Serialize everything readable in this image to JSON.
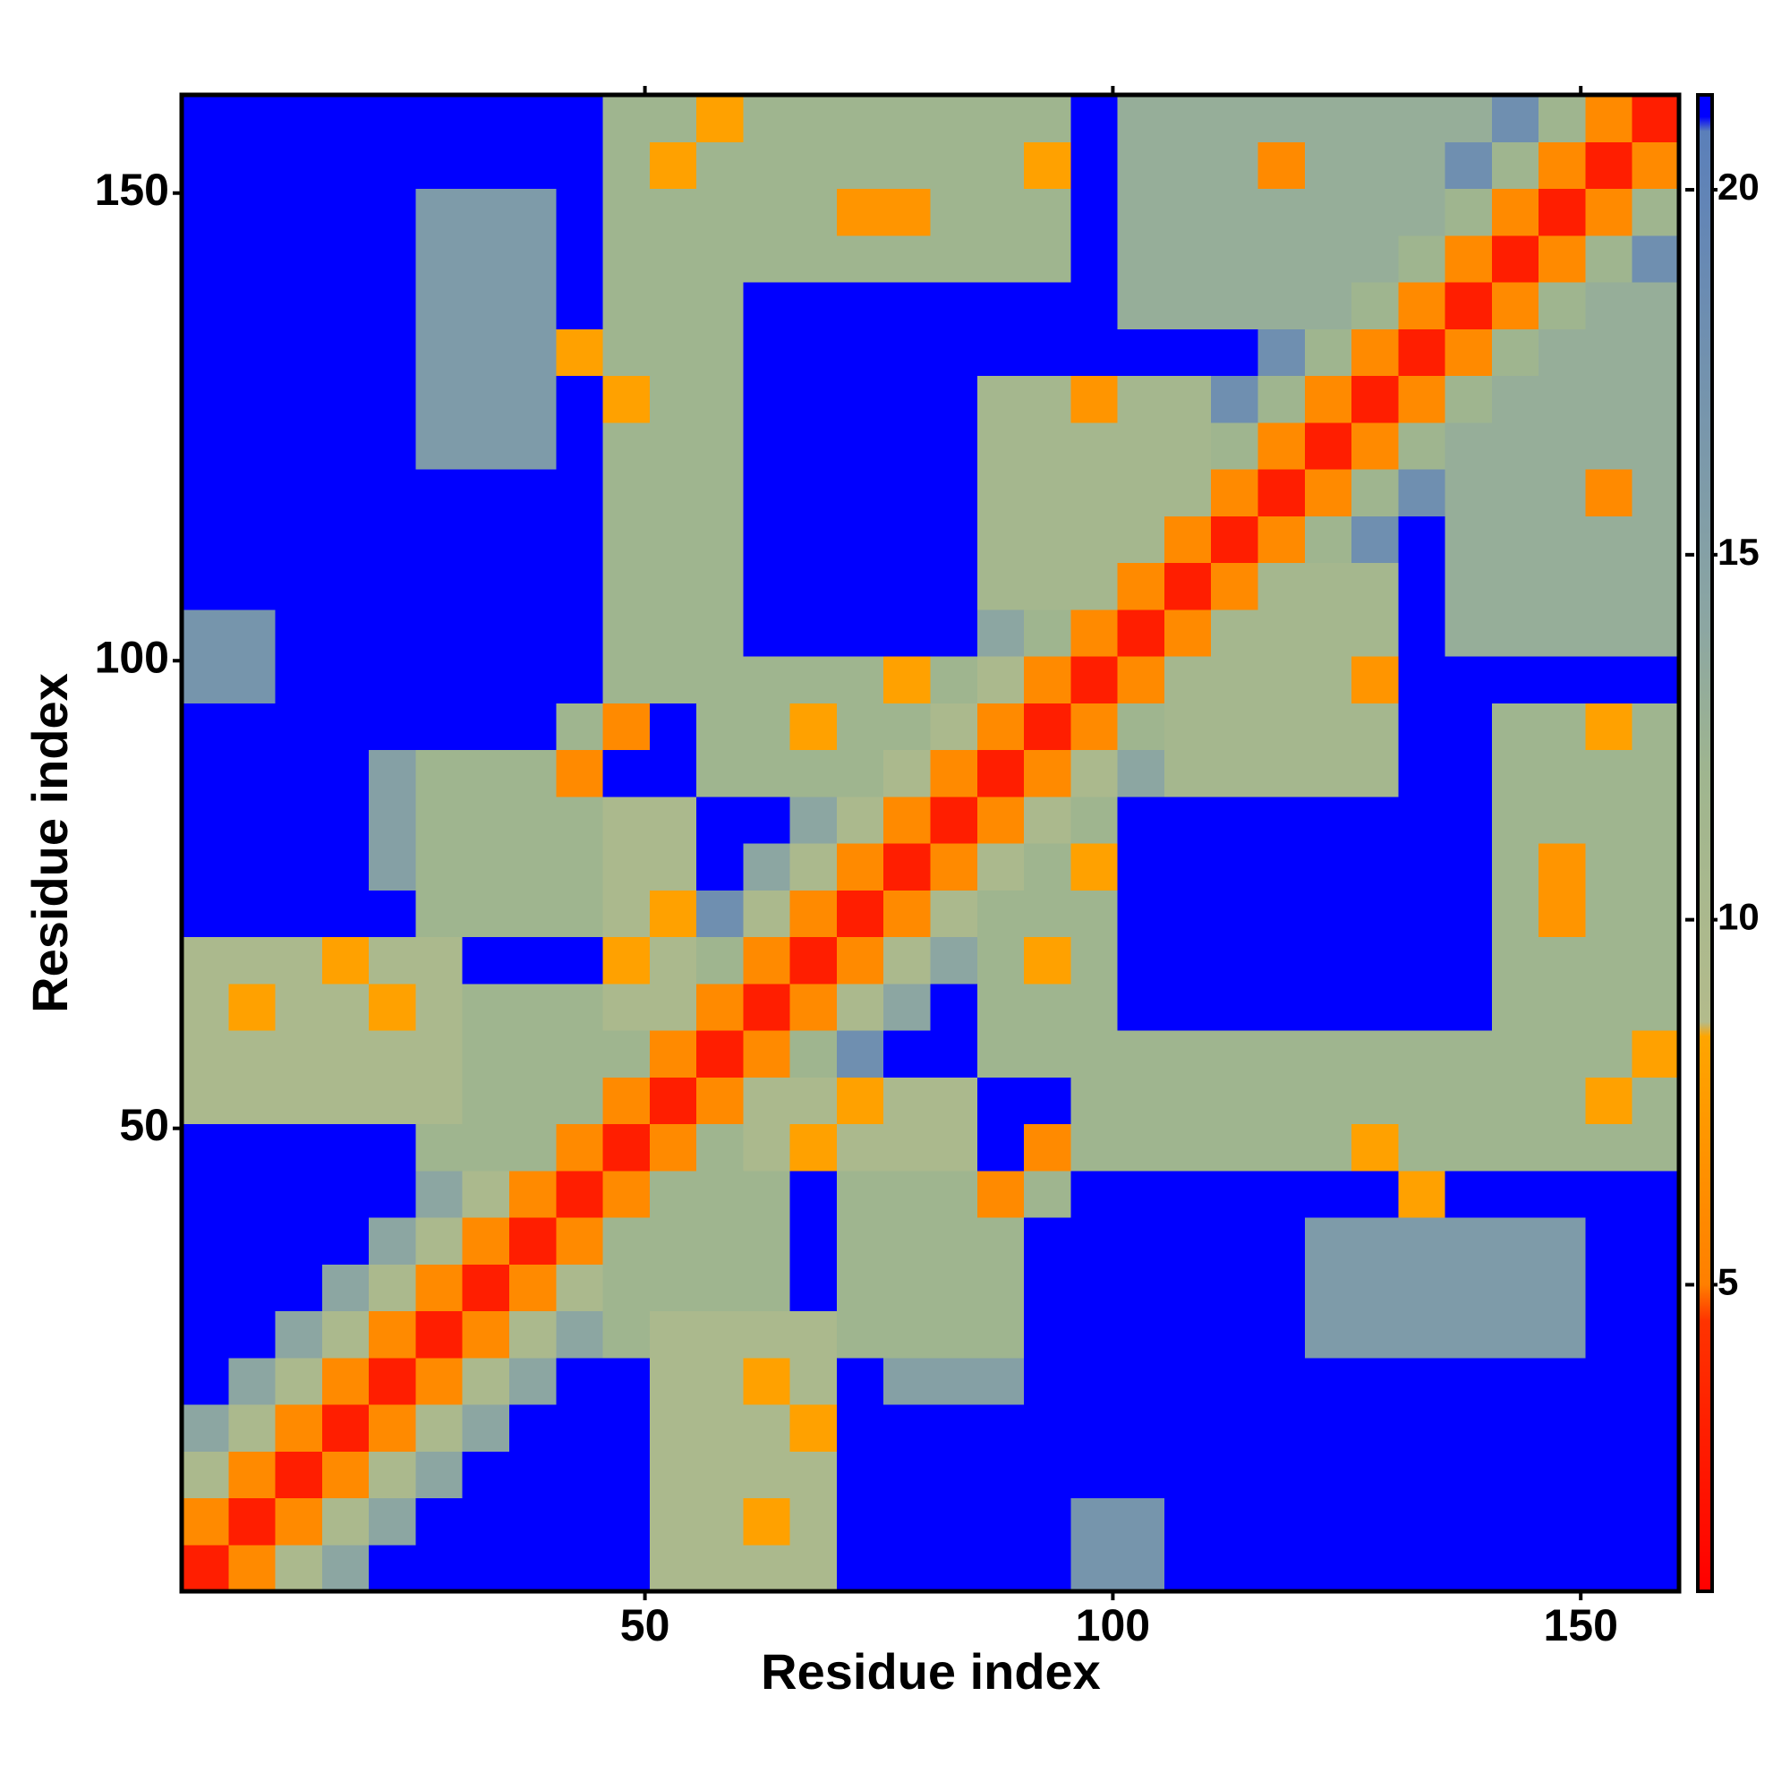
{
  "chart_data": {
    "type": "heatmap",
    "x_label": "Residue index",
    "y_label": "Residue index",
    "xbins": [
      0.5,
      5.5,
      10.5,
      15.5,
      20.5,
      25.5,
      30.5,
      35.5,
      40.5,
      45.5,
      50.5,
      55.5,
      60.5,
      65.5,
      70.5,
      75.5,
      80.5,
      85.5,
      90.5,
      95.5,
      100.5,
      105.5,
      110.5,
      115.5,
      120.5,
      125.5,
      130.5,
      135.5,
      140.5,
      145.5,
      150.5,
      155.5,
      160.5
    ],
    "ybins": [
      0.5,
      5.5,
      10.5,
      15.5,
      20.5,
      25.5,
      30.5,
      35.5,
      40.5,
      45.5,
      50.5,
      55.5,
      60.5,
      65.5,
      70.5,
      75.5,
      80.5,
      85.5,
      90.5,
      95.5,
      100.5,
      105.5,
      110.5,
      115.5,
      120.5,
      125.5,
      130.5,
      135.5,
      140.5,
      145.5,
      150.5,
      155.5,
      160.5
    ],
    "xlim": [
      0.5,
      160.5
    ],
    "ylim": [
      0.5,
      160.5
    ],
    "xticks": [
      50,
      100,
      150
    ],
    "yticks": [
      50,
      100,
      150
    ],
    "clim": [
      0.8,
      21.3
    ],
    "cticks": [
      5,
      10,
      15,
      20
    ],
    "colorscale": [
      [
        0.8,
        "#ff0000"
      ],
      [
        4.5,
        "#ff3300"
      ],
      [
        5,
        "#ff7f00"
      ],
      [
        8.4,
        "#ffa500"
      ],
      [
        8.6,
        "#b3bb8c"
      ],
      [
        12,
        "#9fb58f"
      ],
      [
        14,
        "#8ca6a2"
      ],
      [
        20.8,
        "#5b7fb9"
      ],
      [
        21,
        "#0000ff"
      ],
      [
        21.3,
        "#0000ff"
      ]
    ],
    "values": [
      [
        3,
        6,
        10,
        14,
        22,
        22,
        22,
        22,
        22,
        22,
        10,
        10,
        10,
        10,
        22,
        22,
        22,
        22,
        22,
        17,
        17,
        22,
        22,
        22,
        22,
        22,
        22,
        22,
        22,
        22,
        22,
        22
      ],
      [
        6,
        3,
        6,
        10,
        14,
        22,
        22,
        22,
        22,
        22,
        10,
        10,
        8,
        10,
        22,
        22,
        22,
        22,
        22,
        17,
        17,
        22,
        22,
        22,
        22,
        22,
        22,
        22,
        22,
        22,
        22,
        22
      ],
      [
        10,
        6,
        3,
        6,
        10,
        14,
        22,
        22,
        22,
        22,
        10,
        10,
        10,
        10,
        22,
        22,
        22,
        22,
        22,
        22,
        22,
        22,
        22,
        22,
        22,
        22,
        22,
        22,
        22,
        22,
        22,
        22
      ],
      [
        14,
        10,
        6,
        3,
        6,
        10,
        14,
        22,
        22,
        22,
        10,
        10,
        10,
        8,
        22,
        22,
        22,
        22,
        22,
        22,
        22,
        22,
        22,
        22,
        22,
        22,
        22,
        22,
        22,
        22,
        22,
        22
      ],
      [
        22,
        14,
        10,
        6,
        3,
        6,
        10,
        14,
        22,
        22,
        10,
        10,
        8,
        10,
        22,
        15,
        15,
        15,
        22,
        22,
        22,
        22,
        22,
        22,
        22,
        22,
        22,
        22,
        22,
        22,
        22,
        22
      ],
      [
        22,
        22,
        14,
        10,
        6,
        3,
        6,
        10,
        14,
        12,
        10,
        10,
        10,
        10,
        12,
        12,
        12,
        12,
        22,
        22,
        22,
        22,
        22,
        22,
        16,
        16,
        16,
        16,
        16,
        16,
        22,
        22
      ],
      [
        22,
        22,
        22,
        14,
        10,
        6,
        3,
        6,
        10,
        12,
        12,
        12,
        12,
        22,
        12,
        12,
        12,
        12,
        22,
        22,
        22,
        22,
        22,
        22,
        16,
        16,
        16,
        16,
        16,
        16,
        22,
        22
      ],
      [
        22,
        22,
        22,
        22,
        14,
        10,
        6,
        3,
        6,
        12,
        12,
        12,
        12,
        22,
        12,
        12,
        12,
        12,
        22,
        22,
        22,
        22,
        22,
        22,
        16,
        16,
        16,
        16,
        16,
        16,
        22,
        22
      ],
      [
        22,
        22,
        22,
        22,
        22,
        14,
        10,
        6,
        3,
        6,
        12,
        12,
        12,
        22,
        12,
        12,
        12,
        6,
        12,
        22,
        22,
        22,
        22,
        22,
        22,
        22,
        8,
        22,
        22,
        22,
        22,
        22
      ],
      [
        22,
        22,
        22,
        22,
        22,
        12,
        12,
        12,
        6,
        3,
        6,
        12,
        10,
        8,
        10,
        10,
        10,
        22,
        6,
        12,
        12,
        12,
        12,
        12,
        12,
        8,
        12,
        12,
        12,
        12,
        12,
        12
      ],
      [
        10,
        10,
        10,
        10,
        10,
        10,
        12,
        12,
        12,
        6,
        3,
        6,
        10,
        10,
        8,
        10,
        10,
        22,
        22,
        12,
        12,
        12,
        12,
        12,
        12,
        12,
        12,
        12,
        12,
        12,
        8,
        12
      ],
      [
        10,
        10,
        10,
        10,
        10,
        10,
        12,
        12,
        12,
        12,
        6,
        3,
        6,
        12,
        18,
        22,
        22,
        12,
        12,
        12,
        12,
        12,
        12,
        12,
        12,
        12,
        12,
        12,
        12,
        12,
        12,
        8
      ],
      [
        10,
        8,
        10,
        10,
        8,
        10,
        12,
        12,
        12,
        10,
        10,
        6,
        3,
        6,
        10,
        14,
        22,
        12,
        12,
        12,
        22,
        22,
        22,
        22,
        22,
        22,
        22,
        22,
        12,
        12,
        12,
        12
      ],
      [
        10,
        10,
        10,
        8,
        10,
        10,
        22,
        22,
        22,
        8,
        10,
        12,
        6,
        3,
        6,
        10,
        14,
        12,
        8,
        12,
        22,
        22,
        22,
        22,
        22,
        22,
        22,
        22,
        12,
        12,
        12,
        12
      ],
      [
        22,
        22,
        22,
        22,
        22,
        12,
        12,
        12,
        12,
        10,
        8,
        18,
        10,
        6,
        3,
        6,
        10,
        12,
        12,
        12,
        22,
        22,
        22,
        22,
        22,
        22,
        22,
        22,
        12,
        7,
        12,
        12
      ],
      [
        22,
        22,
        22,
        22,
        15,
        12,
        12,
        12,
        12,
        10,
        10,
        22,
        14,
        10,
        6,
        3,
        6,
        10,
        12,
        8,
        22,
        22,
        22,
        22,
        22,
        22,
        22,
        22,
        12,
        7,
        12,
        12
      ],
      [
        22,
        22,
        22,
        22,
        15,
        12,
        12,
        12,
        12,
        10,
        10,
        22,
        22,
        14,
        10,
        6,
        3,
        6,
        10,
        12,
        22,
        22,
        22,
        22,
        22,
        22,
        22,
        22,
        12,
        12,
        12,
        12
      ],
      [
        22,
        22,
        22,
        22,
        15,
        12,
        12,
        12,
        6,
        22,
        22,
        12,
        12,
        12,
        12,
        10,
        6,
        3,
        6,
        10,
        14,
        11,
        11,
        11,
        11,
        11,
        22,
        22,
        12,
        12,
        12,
        12
      ],
      [
        22,
        22,
        22,
        22,
        22,
        22,
        22,
        22,
        12,
        6,
        22,
        12,
        12,
        8,
        12,
        12,
        10,
        6,
        3,
        6,
        12,
        11,
        11,
        11,
        11,
        11,
        22,
        22,
        12,
        12,
        8,
        12
      ],
      [
        17,
        17,
        22,
        22,
        22,
        22,
        22,
        22,
        22,
        12,
        12,
        12,
        12,
        12,
        12,
        8,
        12,
        10,
        6,
        3,
        6,
        11,
        11,
        11,
        11,
        7,
        22,
        22,
        22,
        22,
        22,
        22
      ],
      [
        17,
        17,
        22,
        22,
        22,
        22,
        22,
        22,
        22,
        12,
        12,
        12,
        22,
        22,
        22,
        22,
        22,
        14,
        12,
        6,
        3,
        6,
        11,
        11,
        11,
        11,
        22,
        13,
        13,
        13,
        13,
        13
      ],
      [
        22,
        22,
        22,
        22,
        22,
        22,
        22,
        22,
        22,
        12,
        12,
        12,
        22,
        22,
        22,
        22,
        22,
        11,
        11,
        11,
        6,
        3,
        6,
        11,
        11,
        11,
        22,
        13,
        13,
        13,
        13,
        13
      ],
      [
        22,
        22,
        22,
        22,
        22,
        22,
        22,
        22,
        22,
        12,
        12,
        12,
        22,
        22,
        22,
        22,
        22,
        11,
        11,
        11,
        11,
        6,
        3,
        6,
        12,
        18,
        22,
        13,
        13,
        13,
        13,
        13
      ],
      [
        22,
        22,
        22,
        22,
        22,
        22,
        22,
        22,
        22,
        12,
        12,
        12,
        22,
        22,
        22,
        22,
        22,
        11,
        11,
        11,
        11,
        11,
        6,
        3,
        6,
        12,
        18,
        13,
        13,
        13,
        6,
        13
      ],
      [
        22,
        22,
        22,
        22,
        22,
        16,
        16,
        16,
        22,
        12,
        12,
        12,
        22,
        22,
        22,
        22,
        22,
        11,
        11,
        11,
        11,
        11,
        12,
        6,
        3,
        6,
        12,
        13,
        13,
        13,
        13,
        13
      ],
      [
        22,
        22,
        22,
        22,
        22,
        16,
        16,
        16,
        22,
        8,
        12,
        12,
        22,
        22,
        22,
        22,
        22,
        11,
        11,
        7,
        11,
        11,
        18,
        12,
        6,
        3,
        6,
        12,
        13,
        13,
        13,
        13
      ],
      [
        22,
        22,
        22,
        22,
        22,
        16,
        16,
        16,
        8,
        12,
        12,
        12,
        22,
        22,
        22,
        22,
        22,
        22,
        22,
        22,
        22,
        22,
        22,
        18,
        12,
        6,
        3,
        6,
        12,
        13,
        13,
        13
      ],
      [
        22,
        22,
        22,
        22,
        22,
        16,
        16,
        16,
        22,
        12,
        12,
        12,
        22,
        22,
        22,
        22,
        22,
        22,
        22,
        22,
        13,
        13,
        13,
        13,
        13,
        12,
        6,
        3,
        6,
        12,
        13,
        13
      ],
      [
        22,
        22,
        22,
        22,
        22,
        16,
        16,
        16,
        22,
        12,
        12,
        12,
        12,
        12,
        12,
        12,
        12,
        12,
        12,
        22,
        13,
        13,
        13,
        13,
        13,
        13,
        12,
        6,
        3,
        6,
        12,
        18
      ],
      [
        22,
        22,
        22,
        22,
        22,
        16,
        16,
        16,
        22,
        12,
        12,
        12,
        12,
        12,
        7,
        7,
        12,
        12,
        12,
        22,
        13,
        13,
        13,
        13,
        13,
        13,
        13,
        12,
        6,
        3,
        6,
        12
      ],
      [
        22,
        22,
        22,
        22,
        22,
        22,
        22,
        22,
        22,
        12,
        8,
        12,
        12,
        12,
        12,
        12,
        12,
        12,
        8,
        22,
        13,
        13,
        13,
        6,
        13,
        13,
        13,
        18,
        12,
        6,
        3,
        6
      ],
      [
        22,
        22,
        22,
        22,
        22,
        22,
        22,
        22,
        22,
        12,
        12,
        8,
        12,
        12,
        12,
        12,
        12,
        12,
        12,
        22,
        13,
        13,
        13,
        13,
        13,
        13,
        13,
        13,
        18,
        12,
        6,
        3
      ]
    ]
  }
}
